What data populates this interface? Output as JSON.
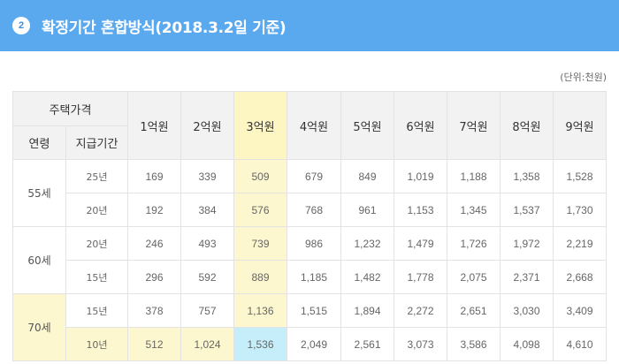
{
  "header": {
    "number": "2",
    "title": "확정기간 혼합방식(2018.3.2일 기준)"
  },
  "unit_note": "(단위:천원)",
  "table": {
    "corner_top": "주택가격",
    "corner_age": "연령",
    "corner_period": "지급기간",
    "columns": [
      "1억원",
      "2억원",
      "3억원",
      "4억원",
      "5억원",
      "6억원",
      "7억원",
      "8억원",
      "9억원"
    ],
    "groups": [
      {
        "age": "55세",
        "rows": [
          {
            "period": "25년",
            "values": [
              "169",
              "339",
              "509",
              "679",
              "849",
              "1,019",
              "1,188",
              "1,358",
              "1,528"
            ]
          },
          {
            "period": "20년",
            "values": [
              "192",
              "384",
              "576",
              "768",
              "961",
              "1,153",
              "1,345",
              "1,537",
              "1,730"
            ]
          }
        ]
      },
      {
        "age": "60세",
        "rows": [
          {
            "period": "20년",
            "values": [
              "246",
              "493",
              "739",
              "986",
              "1,232",
              "1,479",
              "1,726",
              "1,972",
              "2,219"
            ]
          },
          {
            "period": "15년",
            "values": [
              "296",
              "592",
              "889",
              "1,185",
              "1,482",
              "1,778",
              "2,075",
              "2,371",
              "2,668"
            ]
          }
        ]
      },
      {
        "age": "70세",
        "rows": [
          {
            "period": "15년",
            "values": [
              "378",
              "757",
              "1,136",
              "1,515",
              "1,894",
              "2,272",
              "2,651",
              "3,030",
              "3,409"
            ]
          },
          {
            "period": "10년",
            "values": [
              "512",
              "1,024",
              "1,536",
              "2,049",
              "2,561",
              "3,073",
              "3,586",
              "4,098",
              "4,610"
            ]
          }
        ]
      }
    ]
  },
  "colors": {
    "header_bg": "#5aa9ef",
    "highlight_yellow": "#fdf7cf",
    "highlight_blue": "#c6eefa",
    "header_cell_bg": "#f2f2f2"
  }
}
